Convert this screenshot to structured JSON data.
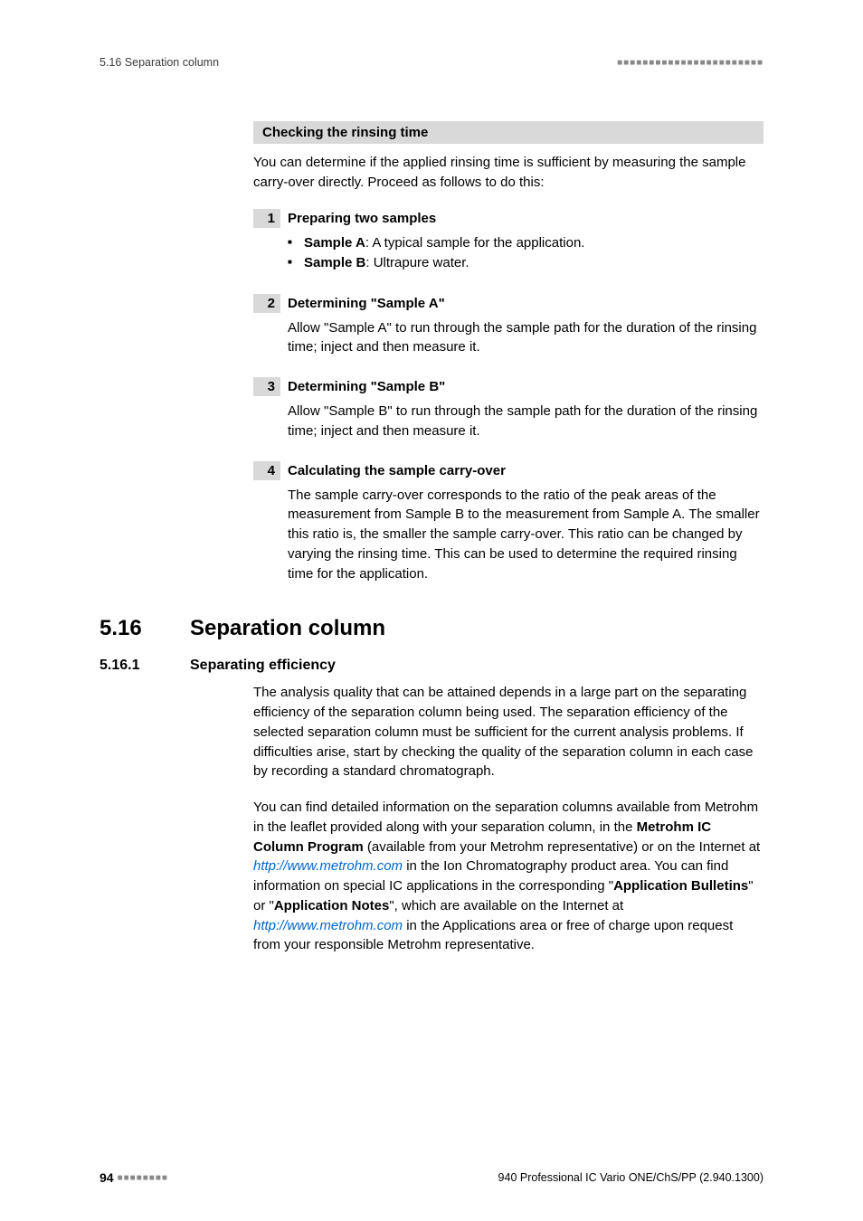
{
  "header": {
    "left": "5.16 Separation column",
    "right_squares": "■■■■■■■■■■■■■■■■■■■■■■■"
  },
  "graybar_title": "Checking the rinsing time",
  "intro": "You can determine if the applied rinsing time is sufficient by measuring the sample carry-over directly. Proceed as follows to do this:",
  "steps": [
    {
      "num": "1",
      "title": "Preparing two samples",
      "bullets": [
        {
          "bold": "Sample A",
          "rest": ": A typical sample for the application."
        },
        {
          "bold": "Sample B",
          "rest": ": Ultrapure water."
        }
      ]
    },
    {
      "num": "2",
      "title": "Determining \"Sample A\"",
      "body": "Allow \"Sample A\" to run through the sample path for the duration of the rinsing time; inject and then measure it."
    },
    {
      "num": "3",
      "title": "Determining \"Sample B\"",
      "body": "Allow \"Sample B\" to run through the sample path for the duration of the rinsing time; inject and then measure it."
    },
    {
      "num": "4",
      "title": "Calculating the sample carry-over",
      "body": "The sample carry-over corresponds to the ratio of the peak areas of the measurement from Sample B to the measurement from Sample A. The smaller this ratio is, the smaller the sample carry-over. This ratio can be changed by varying the rinsing time. This can be used to determine the required rinsing time for the application."
    }
  ],
  "section": {
    "num": "5.16",
    "title": "Separation column"
  },
  "subsection": {
    "num": "5.16.1",
    "title": "Separating efficiency"
  },
  "body1": "The analysis quality that can be attained depends in a large part on the separating efficiency of the separation column being used. The separation efficiency of the selected separation column must be sufficient for the current analysis problems. If difficulties arise, start by checking the quality of the separation column in each case by recording a standard chromatograph.",
  "body2_pre": "You can find detailed information on the separation columns available from Metrohm in the leaflet provided along with your separation column, in the ",
  "body2_bold1": "Metrohm IC Column Program",
  "body2_mid1": " (available from your Metrohm representative) or on the Internet at ",
  "body2_link1": "http://www.metrohm.com",
  "body2_mid2": " in the Ion Chromatography product area. You can find information on special IC applications in the corresponding \"",
  "body2_bold2": "Application Bulletins",
  "body2_mid3": "\" or \"",
  "body2_bold3": "Application Notes",
  "body2_mid4": "\", which are available on the Internet at ",
  "body2_link2": "http://www.metrohm.com",
  "body2_end": " in the Applications area or free of charge upon request from your responsible Metrohm representative.",
  "footer": {
    "page": "94",
    "squares": "■■■■■■■■",
    "right": "940 Professional IC Vario ONE/ChS/PP (2.940.1300)"
  }
}
